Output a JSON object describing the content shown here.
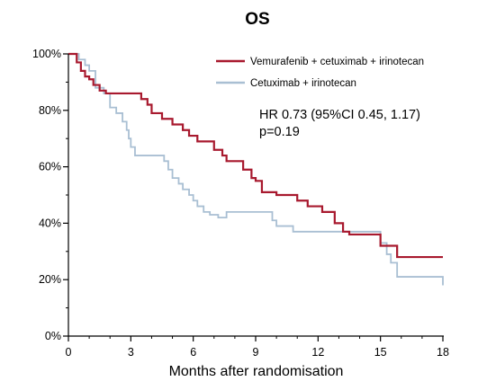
{
  "chart_data": {
    "type": "line",
    "title": "OS",
    "xlabel": "Months after randomisation",
    "ylabel": "",
    "xlim": [
      0,
      18
    ],
    "ylim": [
      0,
      100
    ],
    "x_ticks": [
      "0",
      "3",
      "6",
      "9",
      "12",
      "15",
      "18"
    ],
    "y_ticks": [
      "0%",
      "20%",
      "40%",
      "60%",
      "80%",
      "100%"
    ],
    "legend_position": "top-right",
    "annotations": [
      "HR 0.73 (95%CI 0.45, 1.17)",
      "p=0.19"
    ],
    "series": [
      {
        "name": "Vemurafenib + cetuximab + irinotecan",
        "color": "#a8192e",
        "x": [
          0,
          0.4,
          0.6,
          0.8,
          1.0,
          1.2,
          1.5,
          1.8,
          2.0,
          2.4,
          3.5,
          3.8,
          4.0,
          4.5,
          5.0,
          5.5,
          5.8,
          6.2,
          6.6,
          7.0,
          7.4,
          7.6,
          8.4,
          8.8,
          9.0,
          9.3,
          9.6,
          10.0,
          11.0,
          11.5,
          12.2,
          12.8,
          13.2,
          13.5,
          15.0,
          15.8,
          18.0
        ],
        "y": [
          100,
          97,
          94,
          92,
          91,
          89,
          87,
          86,
          86,
          86,
          84,
          82,
          79,
          77,
          75,
          73,
          71,
          69,
          69,
          66,
          64,
          62,
          59,
          56,
          55,
          51,
          51,
          50,
          48,
          46,
          44,
          40,
          37,
          36,
          32,
          28,
          28
        ]
      },
      {
        "name": "Cetuximab + irinotecan",
        "color": "#a9bfd3",
        "x": [
          0,
          0.5,
          0.8,
          1.0,
          1.3,
          1.7,
          2.0,
          2.3,
          2.6,
          2.8,
          2.9,
          3.0,
          3.2,
          4.4,
          4.6,
          4.8,
          5.0,
          5.3,
          5.5,
          5.8,
          6.0,
          6.2,
          6.5,
          6.8,
          7.2,
          7.6,
          9.6,
          9.8,
          10.0,
          10.8,
          13.0,
          15.0,
          15.3,
          15.5,
          15.8,
          18.0
        ],
        "y": [
          100,
          98,
          96,
          94,
          88,
          86,
          81,
          79,
          76,
          73,
          70,
          67,
          64,
          64,
          62,
          59,
          56,
          54,
          52,
          50,
          48,
          46,
          44,
          43,
          42,
          44,
          44,
          41,
          39,
          37,
          37,
          33,
          29,
          26,
          21,
          18
        ]
      }
    ]
  }
}
